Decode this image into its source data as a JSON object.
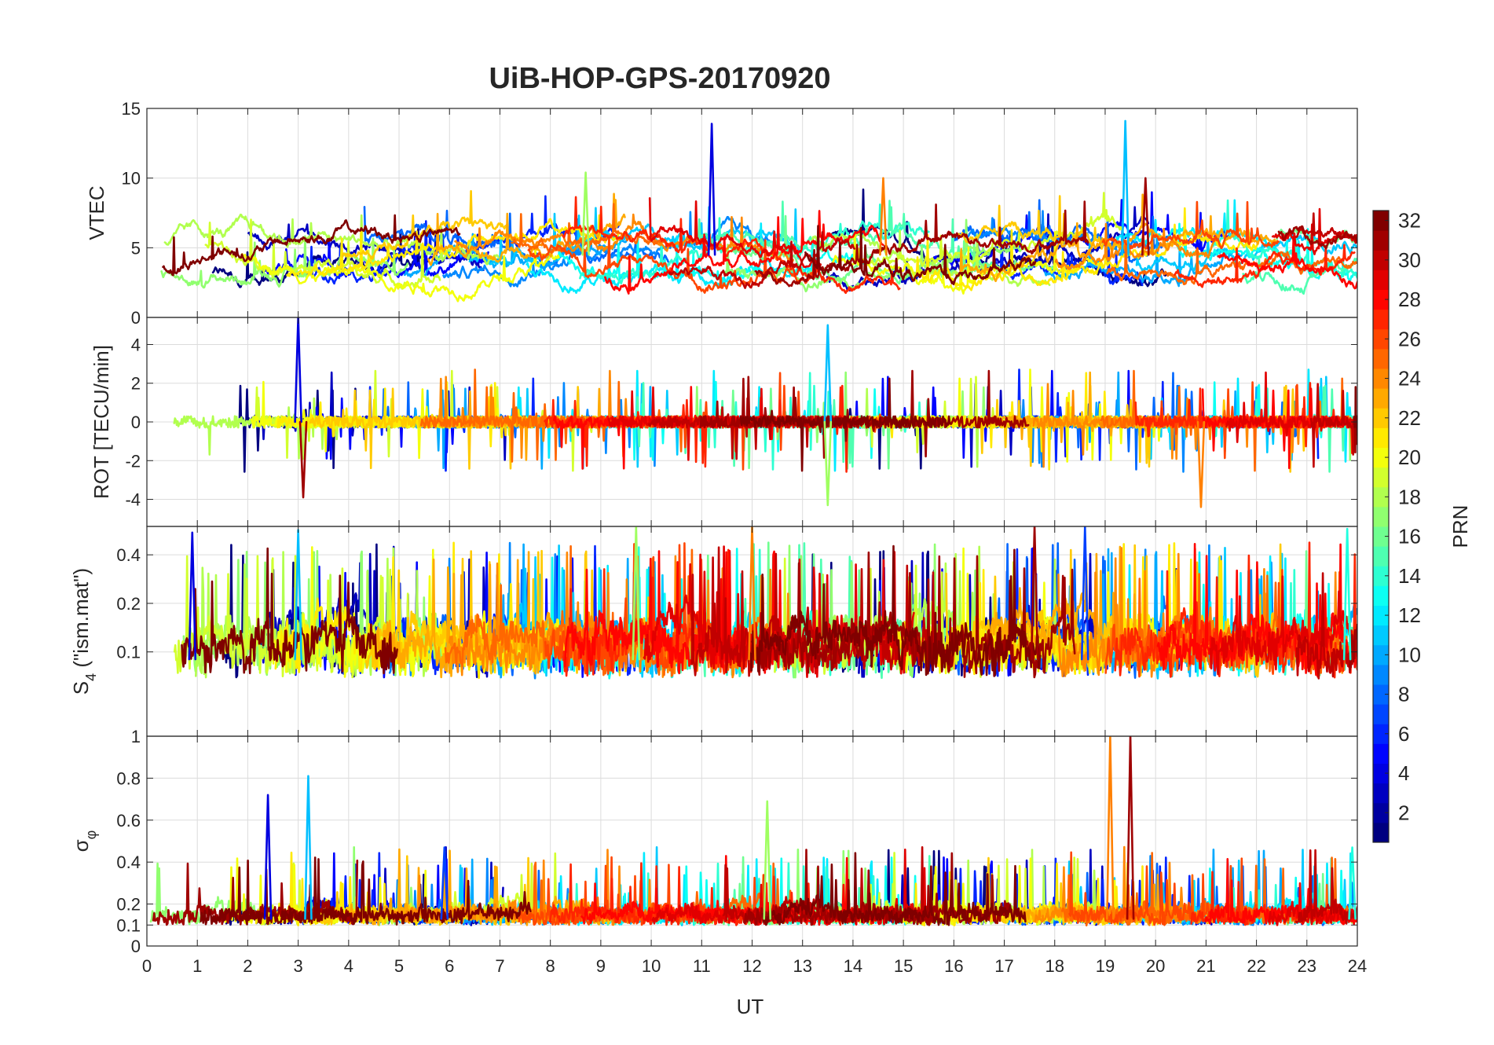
{
  "chart_data": {
    "type": "line",
    "title": "UiB-HOP-GPS-20170920",
    "xlabel": "UT",
    "xlim": [
      0,
      24
    ],
    "xticks": [
      "0",
      "1",
      "2",
      "3",
      "4",
      "5",
      "6",
      "7",
      "8",
      "9",
      "10",
      "11",
      "12",
      "13",
      "14",
      "15",
      "16",
      "17",
      "18",
      "19",
      "20",
      "21",
      "22",
      "23",
      "24"
    ],
    "grid": true,
    "panels": [
      {
        "id": "vtec",
        "ylabel": "VTEC",
        "ylim": [
          0,
          15
        ],
        "yticks": [
          "0",
          "5",
          "10",
          "15"
        ],
        "ytick_values": [
          0,
          5,
          10,
          15
        ],
        "baseline": 4.5,
        "spread": 2.5,
        "spike_max": 3,
        "peaks": [
          {
            "x": 11.2,
            "y": 13.9
          },
          {
            "x": 19.4,
            "y": 14.1
          },
          {
            "x": 8.7,
            "y": 10.4
          },
          {
            "x": 14.6,
            "y": 10.0
          },
          {
            "x": 19.8,
            "y": 10.0
          }
        ]
      },
      {
        "id": "rot",
        "ylabel": "ROT [TECU/min]",
        "ylim": [
          -5.4,
          5.4
        ],
        "yticks": [
          "-4",
          "-2",
          "0",
          "2",
          "4"
        ],
        "ytick_values": [
          -4,
          -2,
          0,
          2,
          4
        ],
        "baseline": 0,
        "spread": 0.3,
        "spike_max": 2.5,
        "peaks": [
          {
            "x": 3.0,
            "y": 5.4
          },
          {
            "x": 13.5,
            "y": 5.0
          },
          {
            "x": 13.5,
            "y": -4.3
          },
          {
            "x": 20.9,
            "y": -4.4
          },
          {
            "x": 3.1,
            "y": -3.9
          }
        ]
      },
      {
        "id": "s4",
        "ylabel": "S4 (\"ism.mat\")",
        "ylabel_main": "S",
        "ylabel_sub": "4",
        "ylabel_rest": " (\"ism.mat\")",
        "ylim": [
          0.03,
          0.6
        ],
        "yscale": "log",
        "yticks": [
          "0.1",
          "0.2",
          "0.4"
        ],
        "ytick_values": [
          0.1,
          0.2,
          0.4
        ],
        "baseline": 0.09,
        "spread": 0.05,
        "spike_max": 0.35,
        "peaks": [
          {
            "x": 0.9,
            "y": 0.55
          },
          {
            "x": 3.0,
            "y": 0.57
          },
          {
            "x": 9.7,
            "y": 0.6
          },
          {
            "x": 12.0,
            "y": 0.6
          },
          {
            "x": 17.6,
            "y": 0.6
          },
          {
            "x": 18.6,
            "y": 0.6
          },
          {
            "x": 23.8,
            "y": 0.58
          }
        ]
      },
      {
        "id": "sigma_phi",
        "ylabel": "σφ",
        "ylabel_main": "σ",
        "ylabel_sub": "φ",
        "ylim": [
          0,
          1
        ],
        "yticks": [
          "0",
          "0.1",
          "0.2",
          "0.4",
          "0.6",
          "0.8",
          "1"
        ],
        "ytick_values": [
          0,
          0.1,
          0.2,
          0.4,
          0.6,
          0.8,
          1
        ],
        "baseline": 0.13,
        "spread": 0.04,
        "spike_max": 0.3,
        "peaks": [
          {
            "x": 2.4,
            "y": 0.72
          },
          {
            "x": 3.2,
            "y": 0.81
          },
          {
            "x": 12.3,
            "y": 0.69
          },
          {
            "x": 19.1,
            "y": 1.0
          },
          {
            "x": 19.5,
            "y": 1.0
          },
          {
            "x": 5.9,
            "y": 0.47
          },
          {
            "x": 23.9,
            "y": 0.47
          }
        ]
      }
    ],
    "colorbar": {
      "label": "PRN",
      "range": [
        1,
        32
      ],
      "ticks": [
        "2",
        "4",
        "6",
        "8",
        "10",
        "12",
        "14",
        "16",
        "18",
        "20",
        "22",
        "24",
        "26",
        "28",
        "30",
        "32"
      ],
      "tick_values": [
        2,
        4,
        6,
        8,
        10,
        12,
        14,
        16,
        18,
        20,
        22,
        24,
        26,
        28,
        30,
        32
      ],
      "colormap": "jet"
    },
    "series_prn": [
      1,
      3,
      5,
      6,
      8,
      9,
      10,
      11,
      12,
      13,
      14,
      15,
      16,
      17,
      18,
      19,
      20,
      21,
      22,
      23,
      24,
      25,
      26,
      27,
      28,
      29,
      30,
      31,
      32
    ]
  }
}
